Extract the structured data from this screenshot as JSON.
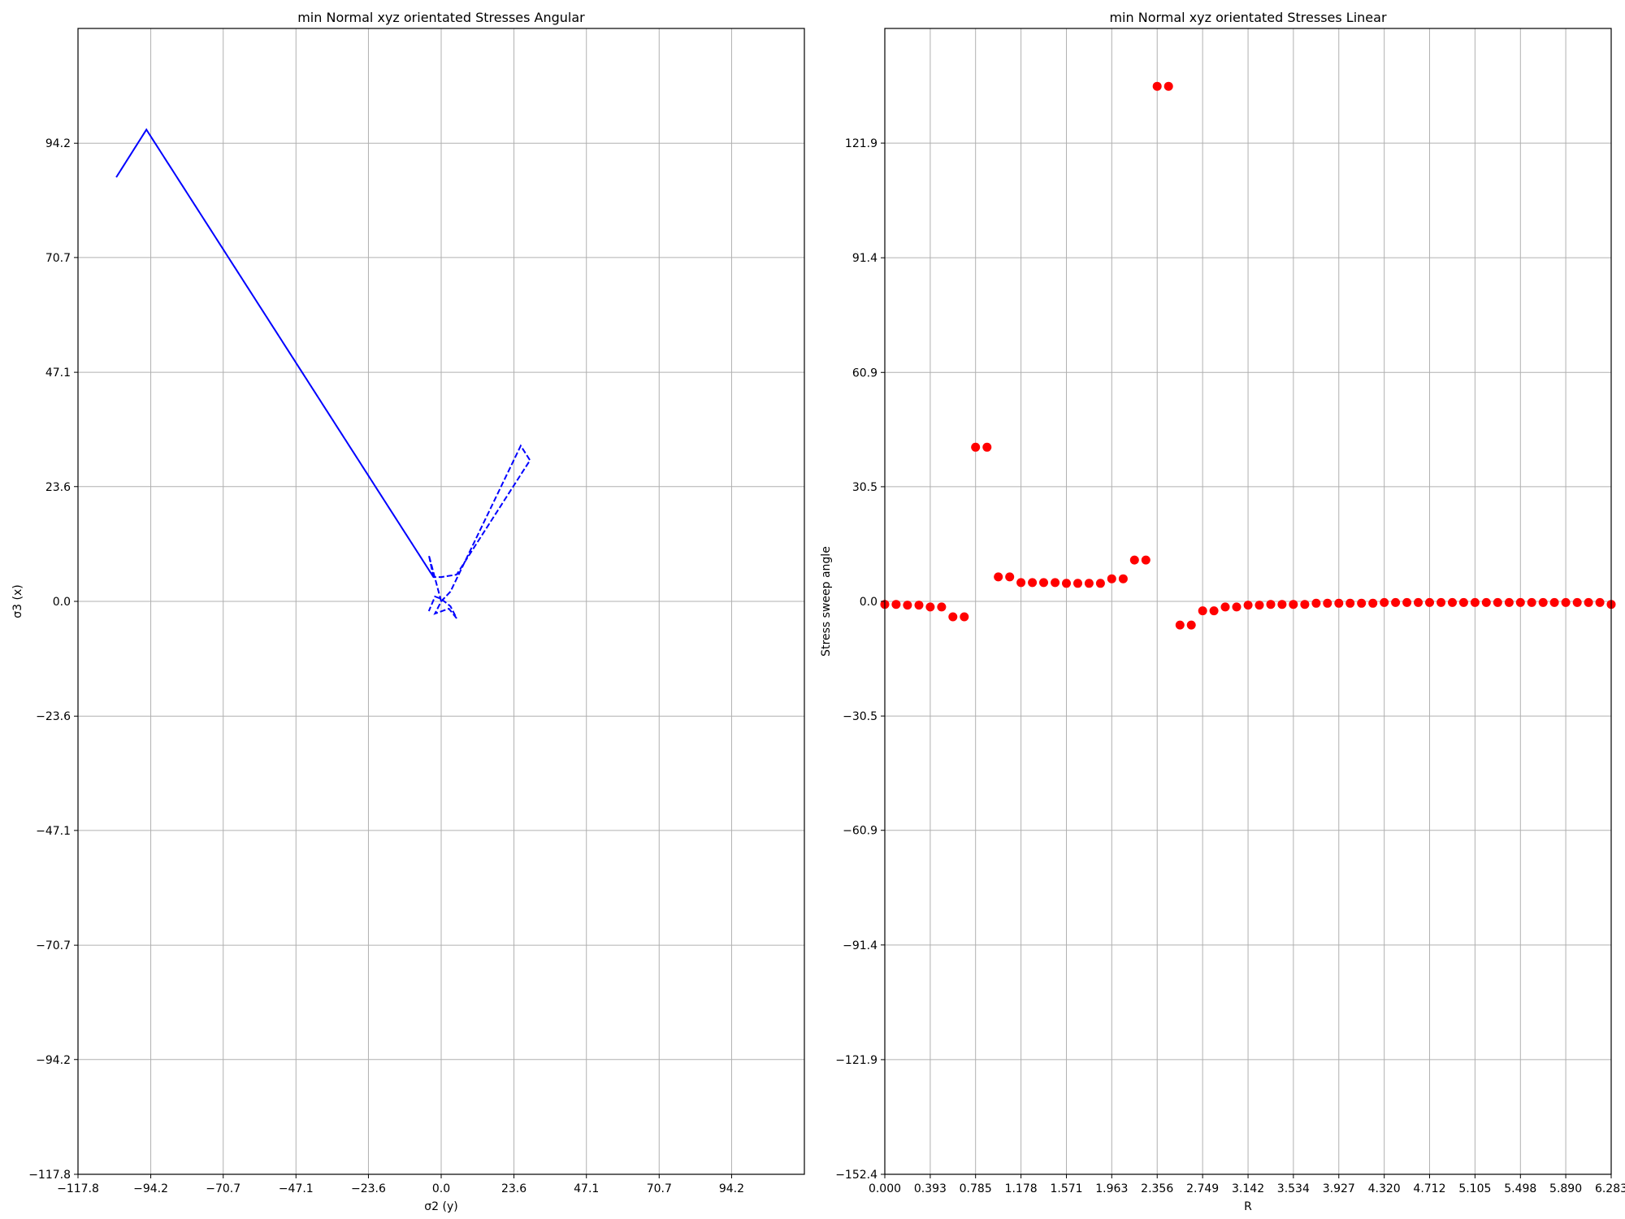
{
  "chart_data": [
    {
      "type": "line",
      "title": "min Normal xyz orientated  Stresses Angular",
      "xlabel": "σ2 (y)",
      "ylabel": "σ3 (x)",
      "xlim": [
        -117.8,
        117.8
      ],
      "ylim": [
        -117.8,
        117.8
      ],
      "xticks": [
        -117.8,
        -94.2,
        -70.7,
        -47.1,
        -23.6,
        0.0,
        23.6,
        47.1,
        70.7,
        94.2
      ],
      "xtick_labels": [
        "−117.8",
        "−94.2",
        "−70.7",
        "−47.1",
        "−23.6",
        "0.0",
        "23.6",
        "47.1",
        "70.7",
        "94.2"
      ],
      "yticks": [
        -117.8,
        -94.2,
        -70.7,
        -47.1,
        -23.6,
        0.0,
        23.6,
        47.1,
        70.7,
        94.2
      ],
      "ytick_labels": [
        "−117.8",
        "−94.2",
        "−70.7",
        "−47.1",
        "−23.6",
        "0.0",
        "23.6",
        "47.1",
        "70.7",
        "94.2"
      ],
      "grid": true,
      "color": "#0000ff",
      "line_style": "dashed",
      "series": [
        {
          "x": [
            0.0,
            -4.0,
            -2.5,
            -95.6,
            -105.4,
            -95.6,
            -2.5,
            0.0,
            5.0,
            28.8,
            25.8,
            3.0,
            0.0,
            -2.0,
            2.5,
            5.0,
            3.0,
            0.0,
            -2.0,
            -4.0
          ],
          "y": [
            0.0,
            9.5,
            5.0,
            97.0,
            87.2,
            97.0,
            5.0,
            5.0,
            5.5,
            29.0,
            32.0,
            2.0,
            0.0,
            -2.5,
            -1.5,
            -3.5,
            -1.0,
            0.5,
            1.0,
            -2.0
          ]
        }
      ]
    },
    {
      "type": "scatter",
      "title": "min Normal xyz orientated  Stresses Linear",
      "xlabel": "R",
      "ylabel": "Stress sweep angle",
      "xlim": [
        0.0,
        6.283
      ],
      "ylim": [
        -152.4,
        152.4
      ],
      "xticks": [
        0.0,
        0.393,
        0.785,
        1.178,
        1.571,
        1.963,
        2.356,
        2.749,
        3.142,
        3.534,
        3.927,
        4.32,
        4.712,
        5.105,
        5.498,
        5.89,
        6.283
      ],
      "xtick_labels": [
        "0.000",
        "0.393",
        "0.785",
        "1.178",
        "1.571",
        "1.963",
        "2.356",
        "2.749",
        "3.142",
        "3.534",
        "3.927",
        "4.320",
        "4.712",
        "5.105",
        "5.498",
        "5.890",
        "6.283"
      ],
      "yticks": [
        -152.4,
        -121.9,
        -91.4,
        -60.9,
        -30.5,
        0.0,
        30.5,
        60.9,
        91.4,
        121.9
      ],
      "ytick_labels": [
        "−152.4",
        "−121.9",
        "−91.4",
        "−60.9",
        "−30.5",
        "0.0",
        "30.5",
        "60.9",
        "91.4",
        "121.9"
      ],
      "grid": true,
      "color": "#ff0000",
      "x": [
        0.0,
        0.098,
        0.196,
        0.295,
        0.393,
        0.491,
        0.589,
        0.687,
        0.785,
        0.884,
        0.982,
        1.08,
        1.178,
        1.276,
        1.374,
        1.473,
        1.571,
        1.669,
        1.767,
        1.865,
        1.963,
        2.062,
        2.16,
        2.258,
        2.356,
        2.454,
        2.553,
        2.651,
        2.749,
        2.847,
        2.945,
        3.043,
        3.142,
        3.24,
        3.338,
        3.436,
        3.534,
        3.633,
        3.731,
        3.829,
        3.927,
        4.025,
        4.123,
        4.222,
        4.32,
        4.418,
        4.516,
        4.614,
        4.712,
        4.811,
        4.909,
        5.007,
        5.105,
        5.203,
        5.301,
        5.4,
        5.498,
        5.596,
        5.694,
        5.792,
        5.89,
        5.989,
        6.087,
        6.185,
        6.283
      ],
      "y": [
        -0.8,
        -0.8,
        -1.0,
        -1.0,
        -1.5,
        -1.5,
        -4.1,
        -4.1,
        41.0,
        41.0,
        6.5,
        6.5,
        5.0,
        5.0,
        5.0,
        5.0,
        4.8,
        4.8,
        4.8,
        4.8,
        6.0,
        6.0,
        11.0,
        11.0,
        137.0,
        137.0,
        -6.3,
        -6.3,
        -2.5,
        -2.5,
        -1.5,
        -1.5,
        -1.0,
        -1.0,
        -0.8,
        -0.8,
        -0.8,
        -0.8,
        -0.5,
        -0.5,
        -0.5,
        -0.5,
        -0.5,
        -0.5,
        -0.3,
        -0.3,
        -0.3,
        -0.3,
        -0.3,
        -0.3,
        -0.3,
        -0.3,
        -0.3,
        -0.3,
        -0.3,
        -0.3,
        -0.3,
        -0.3,
        -0.3,
        -0.3,
        -0.3,
        -0.3,
        -0.3,
        -0.3,
        -0.8
      ]
    }
  ]
}
